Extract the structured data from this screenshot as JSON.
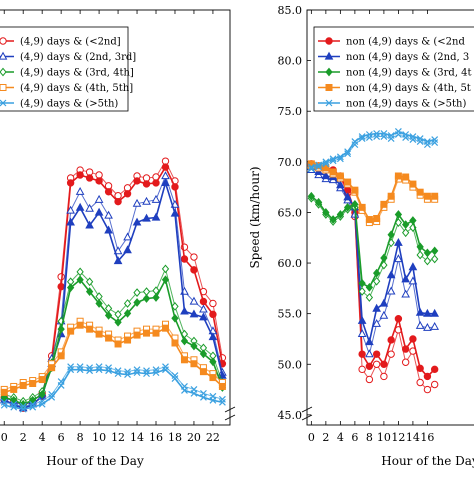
{
  "chart_data": [
    {
      "type": "line",
      "title": "",
      "xlabel": "Hour of the Day",
      "ylabel": "",
      "xlim": [
        -1.5,
        23.8
      ],
      "ylim": [
        44,
        86
      ],
      "x_ticks": [
        0,
        2,
        4,
        6,
        8,
        10,
        12,
        14,
        16,
        18,
        20,
        22
      ],
      "x_tick_labels": [
        "0",
        "2",
        "4",
        "6",
        "8",
        "10",
        "12",
        "14",
        "16",
        "18",
        "20",
        "22"
      ],
      "legend_position": "top-left",
      "legend_entries": [
        "(4,9) days & (<2nd]",
        "(4,9) days & (2nd, 3rd]",
        "(4,9) days & (3rd, 4th]",
        "(4,9) days & (4th, 5th]",
        "(4,9) days & (>5th)"
      ],
      "x": [
        0,
        1,
        2,
        3,
        4,
        5,
        6,
        7,
        8,
        9,
        10,
        11,
        12,
        13,
        14,
        15,
        16,
        17,
        18,
        19,
        20,
        21,
        22,
        23
      ],
      "series": [
        {
          "name": "(4,9) days & (<2nd]",
          "color": "#e31a1c",
          "marker": "circle",
          "values": [
            46.5,
            46.1,
            45.7,
            46.1,
            46.9,
            50.5,
            58.0,
            68.5,
            69.3,
            69.0,
            68.7,
            67.6,
            66.6,
            67.4,
            68.7,
            68.4,
            68.5,
            70.1,
            68.1,
            60.8,
            59.7,
            56.5,
            55.2,
            50.2
          ],
          "values_2": [
            46.8,
            46.4,
            46.0,
            46.4,
            47.2,
            51.0,
            59.0,
            69.0,
            69.8,
            69.6,
            69.3,
            68.2,
            67.2,
            68.0,
            69.2,
            69.0,
            69.1,
            70.7,
            68.7,
            62.0,
            61.0,
            57.5,
            56.3,
            50.8
          ]
        },
        {
          "name": "(4,9) days & (2nd, 3rd]",
          "color": "#1f3fbf",
          "marker": "triangle",
          "values": [
            46.5,
            46.1,
            45.7,
            46.1,
            46.9,
            50.2,
            53.2,
            64.5,
            66.0,
            64.2,
            65.5,
            63.7,
            60.6,
            61.7,
            64.5,
            64.9,
            65.0,
            68.5,
            65.4,
            55.5,
            55.2,
            54.9,
            52.9,
            49.0
          ],
          "values_2": [
            46.8,
            46.4,
            46.0,
            46.4,
            47.2,
            50.7,
            54.5,
            65.7,
            67.6,
            65.9,
            66.8,
            65.2,
            61.6,
            63.0,
            66.4,
            66.6,
            66.8,
            69.2,
            66.3,
            57.5,
            56.5,
            55.7,
            53.5,
            49.3
          ]
        },
        {
          "name": "(4,9) days & (3rd, 4th]",
          "color": "#1a9c2a",
          "marker": "diamond",
          "values": [
            46.8,
            46.5,
            46.1,
            46.5,
            47.1,
            49.8,
            53.7,
            57.9,
            58.7,
            57.5,
            56.3,
            55.1,
            54.4,
            55.3,
            56.4,
            56.8,
            56.9,
            58.7,
            54.8,
            52.5,
            52.0,
            51.2,
            50.4,
            47.8
          ],
          "values_2": [
            47.1,
            46.8,
            46.4,
            46.8,
            47.4,
            50.3,
            54.5,
            58.5,
            59.5,
            58.5,
            57.0,
            55.8,
            55.2,
            56.3,
            57.4,
            57.5,
            57.6,
            59.8,
            56.0,
            53.2,
            52.5,
            51.8,
            51.0,
            48.3
          ]
        },
        {
          "name": "(4,9) days & (4th, 5th]",
          "color": "#f58a1f",
          "marker": "square",
          "values": [
            47.3,
            47.6,
            48.0,
            48.2,
            48.6,
            49.8,
            51.0,
            53.5,
            54.1,
            53.7,
            53.2,
            52.8,
            52.2,
            52.6,
            53.1,
            53.3,
            53.3,
            53.8,
            52.3,
            50.6,
            50.2,
            49.4,
            48.8,
            47.9
          ],
          "values_2": [
            47.6,
            47.9,
            48.3,
            48.5,
            48.9,
            50.2,
            51.4,
            53.9,
            54.5,
            54.1,
            53.6,
            53.2,
            52.6,
            53.0,
            53.5,
            53.7,
            53.7,
            54.2,
            52.8,
            51.0,
            50.6,
            49.8,
            49.2,
            48.3
          ]
        },
        {
          "name": "(4,9) days & (>5th)",
          "color": "#3aa0e0",
          "marker": "x",
          "values": [
            46.0,
            45.8,
            45.6,
            45.8,
            46.1,
            46.8,
            48.0,
            49.6,
            49.6,
            49.5,
            49.6,
            49.5,
            49.2,
            49.1,
            49.3,
            49.2,
            49.3,
            49.6,
            48.7,
            47.5,
            47.2,
            46.8,
            46.5,
            46.3
          ],
          "values_2": [
            46.3,
            46.1,
            45.9,
            46.1,
            46.4,
            47.1,
            48.4,
            49.9,
            49.9,
            49.8,
            49.9,
            49.8,
            49.5,
            49.4,
            49.6,
            49.5,
            49.6,
            49.9,
            49.0,
            47.9,
            47.6,
            47.2,
            46.9,
            46.6
          ]
        }
      ]
    },
    {
      "type": "line",
      "title": "",
      "xlabel": "Hour of the Day",
      "ylabel": "Speed (km/hour)",
      "xlim": [
        -0.6,
        23.8
      ],
      "ylim": [
        44,
        85
      ],
      "y_ticks": [
        45,
        50,
        55,
        60,
        65,
        70,
        75,
        80,
        85
      ],
      "y_tick_labels": [
        "45.0",
        "50.0",
        "55.0",
        "60.0",
        "65.0",
        "70.0",
        "75.0",
        "80.0",
        "85.0"
      ],
      "x_ticks": [
        0,
        2,
        4,
        6,
        8,
        10,
        12,
        14,
        16
      ],
      "x_tick_labels": [
        "0",
        "2",
        "4",
        "6",
        "8",
        "10",
        "12",
        "14",
        "16"
      ],
      "legend_position": "top-left",
      "legend_entries": [
        "non (4,9) days & (<2nd",
        "non (4,9) days & (2nd, 3",
        "non (4,9) days & (3rd, 4t",
        "non (4,9) days & (4th, 5t",
        "non (4,9) days & (>5th)"
      ],
      "x": [
        0,
        1,
        2,
        3,
        4,
        5,
        6,
        7,
        8,
        9,
        10,
        11,
        12,
        13,
        14,
        15,
        16,
        17
      ],
      "series": [
        {
          "name": "non (4,9) days & (<2nd",
          "color": "#e31a1c",
          "marker": "circle",
          "values": [
            69.8,
            69.6,
            69.4,
            69.2,
            68.6,
            67.2,
            65.0,
            51.0,
            49.8,
            51.0,
            50.0,
            52.4,
            54.5,
            51.5,
            52.5,
            49.6,
            48.8,
            49.5
          ],
          "values_2": [
            69.6,
            69.4,
            69.2,
            69.0,
            68.4,
            66.9,
            64.6,
            49.5,
            48.5,
            50.0,
            48.8,
            51.0,
            53.4,
            50.2,
            51.3,
            48.2,
            47.5,
            48.0
          ]
        },
        {
          "name": "non (4,9) days & (2nd, 3",
          "color": "#1f3fbf",
          "marker": "triangle",
          "values": [
            69.5,
            69.0,
            68.6,
            68.5,
            67.7,
            66.5,
            65.5,
            54.3,
            52.2,
            55.5,
            56.0,
            58.8,
            62.0,
            58.4,
            59.6,
            55.1,
            55.0,
            55.0
          ],
          "values_2": [
            69.2,
            68.7,
            68.3,
            68.2,
            67.4,
            66.2,
            64.8,
            53.0,
            51.0,
            54.0,
            54.8,
            57.2,
            60.4,
            56.9,
            58.2,
            53.8,
            53.6,
            53.7
          ]
        },
        {
          "name": "non (4,9) days & (3rd, 4t",
          "color": "#1a9c2a",
          "marker": "diamond",
          "values": [
            66.6,
            66.0,
            65.0,
            64.3,
            64.8,
            65.5,
            65.8,
            58.0,
            57.6,
            59.0,
            60.5,
            62.8,
            64.8,
            63.8,
            64.2,
            61.6,
            61.0,
            61.2
          ],
          "values_2": [
            66.4,
            65.8,
            64.8,
            64.1,
            64.6,
            65.3,
            65.5,
            57.2,
            56.6,
            58.2,
            59.8,
            62.0,
            64.0,
            63.0,
            63.5,
            60.8,
            60.2,
            60.4
          ]
        },
        {
          "name": "non (4,9) days & (4th, 5t",
          "color": "#f58a1f",
          "marker": "square",
          "values": [
            69.8,
            69.6,
            69.4,
            69.0,
            68.6,
            68.0,
            67.2,
            65.5,
            64.3,
            64.4,
            65.8,
            66.6,
            68.6,
            68.5,
            67.8,
            67.0,
            66.6,
            66.6
          ],
          "values_2": [
            69.6,
            69.4,
            69.2,
            68.8,
            68.4,
            67.8,
            67.0,
            65.2,
            64.0,
            64.1,
            65.5,
            66.3,
            68.3,
            68.2,
            67.5,
            66.7,
            66.3,
            66.3
          ]
        },
        {
          "name": "non (4,9) days & (>5th)",
          "color": "#3aa0e0",
          "marker": "x",
          "values": [
            69.5,
            69.7,
            70.0,
            70.3,
            70.5,
            71.0,
            72.0,
            72.5,
            72.7,
            72.8,
            72.8,
            72.6,
            73.0,
            72.7,
            72.5,
            72.3,
            72.0,
            72.2
          ],
          "values_2": [
            69.3,
            69.5,
            69.8,
            70.1,
            70.3,
            70.8,
            71.7,
            72.3,
            72.4,
            72.5,
            72.5,
            72.3,
            72.7,
            72.4,
            72.2,
            72.0,
            71.7,
            71.9
          ]
        }
      ]
    }
  ]
}
